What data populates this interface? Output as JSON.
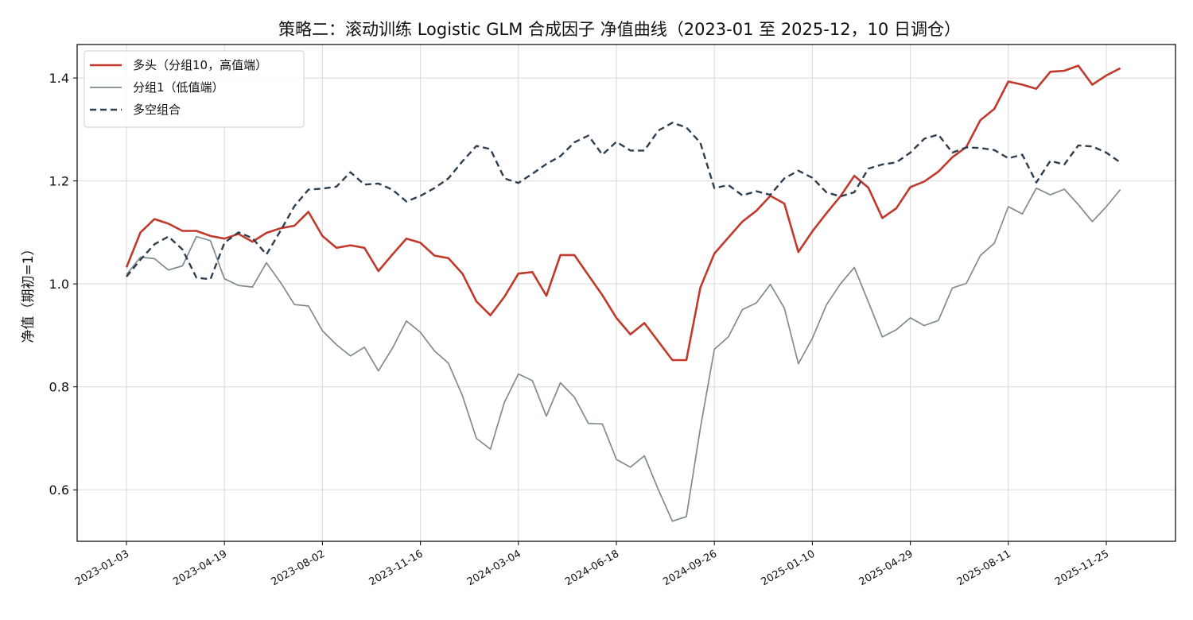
{
  "chart_data": {
    "type": "line",
    "title": "策略二：滚动训练 Logistic GLM 合成因子 净值曲线（2023-01 至 2025-12，10 日调仓）",
    "xlabel": "",
    "ylabel": "净值（期初=1）",
    "ylim": [
      0.5,
      1.465
    ],
    "yticks": [
      "0.6",
      "0.8",
      "1.0",
      "1.2",
      "1.4"
    ],
    "xtick_labels": [
      "2023-01-03",
      "2023-04-19",
      "2023-08-02",
      "2023-11-16",
      "2024-03-04",
      "2024-06-18",
      "2024-09-26",
      "2025-01-10",
      "2025-04-29",
      "2025-08-11",
      "2025-11-25"
    ],
    "grid": true,
    "legend_position": "top-left",
    "series": [
      {
        "name": "多头（分组10，高值端）",
        "color": "#c0392b",
        "dash": "solid",
        "values": [
          1.032,
          1.1,
          1.126,
          1.117,
          1.103,
          1.103,
          1.093,
          1.088,
          1.097,
          1.082,
          1.099,
          1.108,
          1.113,
          1.14,
          1.093,
          1.07,
          1.075,
          1.07,
          1.025,
          1.057,
          1.088,
          1.08,
          1.055,
          1.05,
          1.02,
          0.966,
          0.939,
          0.975,
          1.02,
          1.023,
          0.977,
          1.056,
          1.056,
          1.017,
          0.978,
          0.934,
          0.902,
          0.924,
          0.888,
          0.852,
          0.852,
          0.993,
          1.059,
          1.09,
          1.121,
          1.142,
          1.171,
          1.156,
          1.062,
          1.102,
          1.137,
          1.17,
          1.21,
          1.187,
          1.128,
          1.147,
          1.188,
          1.199,
          1.218,
          1.246,
          1.266,
          1.318,
          1.34,
          1.393,
          1.387,
          1.379,
          1.412,
          1.414,
          1.424,
          1.387,
          1.405,
          1.419
        ]
      },
      {
        "name": "分组1（低值端）",
        "color": "#7f8c8d",
        "dash": "solid",
        "values": [
          1.018,
          1.052,
          1.049,
          1.027,
          1.035,
          1.092,
          1.084,
          1.01,
          0.997,
          0.994,
          1.041,
          1.003,
          0.96,
          0.957,
          0.909,
          0.882,
          0.86,
          0.877,
          0.831,
          0.875,
          0.928,
          0.906,
          0.87,
          0.846,
          0.783,
          0.7,
          0.679,
          0.77,
          0.825,
          0.812,
          0.743,
          0.808,
          0.78,
          0.729,
          0.728,
          0.659,
          0.644,
          0.666,
          0.6,
          0.539,
          0.548,
          0.72,
          0.873,
          0.897,
          0.95,
          0.963,
          0.999,
          0.953,
          0.845,
          0.894,
          0.959,
          1.0,
          1.032,
          0.965,
          0.897,
          0.911,
          0.934,
          0.919,
          0.929,
          0.992,
          1.001,
          1.055,
          1.079,
          1.15,
          1.136,
          1.186,
          1.173,
          1.184,
          1.154,
          1.121,
          1.15,
          1.183
        ]
      },
      {
        "name": "多空组合",
        "color": "#2c3e50",
        "dash": "dashed",
        "values": [
          1.014,
          1.047,
          1.077,
          1.092,
          1.067,
          1.012,
          1.009,
          1.08,
          1.1,
          1.089,
          1.057,
          1.103,
          1.151,
          1.183,
          1.185,
          1.189,
          1.217,
          1.193,
          1.195,
          1.183,
          1.16,
          1.171,
          1.186,
          1.205,
          1.238,
          1.268,
          1.262,
          1.205,
          1.196,
          1.214,
          1.233,
          1.248,
          1.275,
          1.288,
          1.251,
          1.276,
          1.259,
          1.259,
          1.298,
          1.313,
          1.304,
          1.274,
          1.186,
          1.192,
          1.172,
          1.18,
          1.173,
          1.205,
          1.22,
          1.206,
          1.178,
          1.17,
          1.178,
          1.224,
          1.232,
          1.236,
          1.255,
          1.282,
          1.29,
          1.255,
          1.265,
          1.264,
          1.26,
          1.244,
          1.251,
          1.197,
          1.239,
          1.232,
          1.269,
          1.267,
          1.255,
          1.236
        ]
      }
    ]
  }
}
